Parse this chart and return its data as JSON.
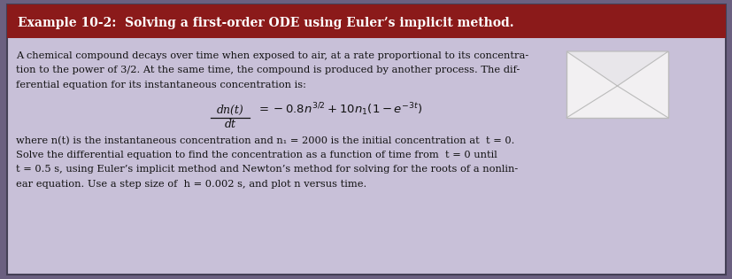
{
  "title": "Example 10-2:  Solving a first-order ODE using Euler’s implicit method.",
  "title_bg": "#8B1A1A",
  "title_color": "#FFFFFF",
  "body_bg": "#C8C0D8",
  "outer_bg": "#6B6080",
  "text_color": "#111111",
  "body_text_lines": [
    "A chemical compound decays over time when exposed to air, at a rate proportional to its concentra-",
    "tion to the power of 3/2. At the same time, the compound is produced by another process. The dif-",
    "ferential equation for its instantaneous concentration is:"
  ],
  "bottom_text_lines": [
    "where n(t) is the instantaneous concentration and n₁ = 2000 is the initial concentration at  t = 0.",
    "Solve the differential equation to find the concentration as a function of time from  t = 0 until",
    "t = 0.5 s, using Euler’s implicit method and Newton’s method for solving for the roots of a nonlin-",
    "ear equation. Use a step size of  h = 0.002 s, and plot n versus time."
  ],
  "envelope_color": "#F2F0F2",
  "envelope_line_color": "#BBBBBB",
  "title_fontsize": 10.0,
  "body_fontsize": 8.2,
  "eq_fontsize": 9.0
}
